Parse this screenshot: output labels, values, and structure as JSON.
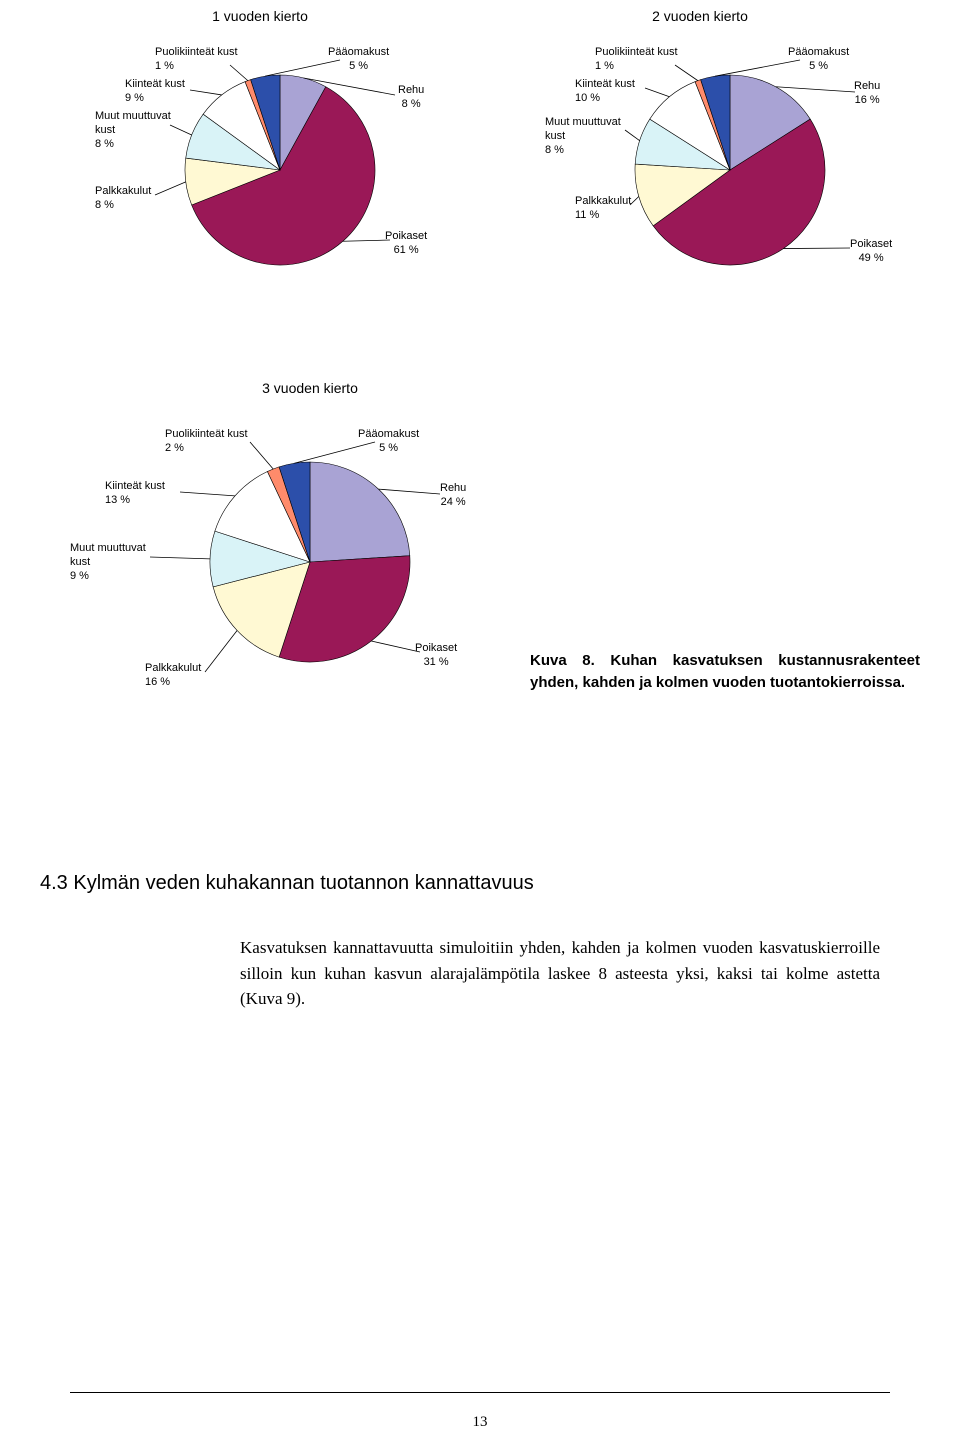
{
  "colors": {
    "rehu": "#a9a3d4",
    "poikaset": "#9a1857",
    "palkkakulut": "#fff9d3",
    "muut": "#d9f3f7",
    "kiinteat": "#ffffff",
    "puolikiinteat": "#ff8b6b",
    "paa": "#2c4faa",
    "outline": "#000000"
  },
  "chart1": {
    "title": "1 vuoden kierto",
    "type": "pie",
    "radius": 95,
    "slices": [
      {
        "label": "Rehu",
        "pct": 8
      },
      {
        "label": "Poikaset",
        "pct": 61
      },
      {
        "label": "Palkkakulut",
        "pct": 8
      },
      {
        "label": "Muut muuttuvat kust",
        "pct": 8
      },
      {
        "label": "Kiinteät kust",
        "pct": 9
      },
      {
        "label": "Puolikiinteät kust",
        "pct": 1
      },
      {
        "label": "Pääomakust",
        "pct": 5
      }
    ],
    "labels": {
      "puolikiinteat": "Puolikiinteät kust\n1 %",
      "kiinteat": "Kiinteät kust\n9 %",
      "muut": "Muut muuttuvat\nkust\n8 %",
      "palkkakulut": "Palkkakulut\n8 %",
      "paa": "Pääomakust\n5 %",
      "rehu": "Rehu\n8 %",
      "poikaset": "Poikaset\n61 %"
    }
  },
  "chart2": {
    "title": "2 vuoden kierto",
    "type": "pie",
    "radius": 95,
    "slices": [
      {
        "label": "Rehu",
        "pct": 16
      },
      {
        "label": "Poikaset",
        "pct": 49
      },
      {
        "label": "Palkkakulut",
        "pct": 11
      },
      {
        "label": "Muut muuttuvat kust",
        "pct": 8
      },
      {
        "label": "Kiinteät kust",
        "pct": 10
      },
      {
        "label": "Puolikiinteät kust",
        "pct": 1
      },
      {
        "label": "Pääomakust",
        "pct": 5
      }
    ],
    "labels": {
      "puolikiinteat": "Puolikiinteät kust\n1 %",
      "kiinteat": "Kiinteät kust\n10 %",
      "muut": "Muut muuttuvat\nkust\n8 %",
      "palkkakulut": "Palkkakulut\n11 %",
      "paa": "Pääomakust\n5 %",
      "rehu": "Rehu\n16 %",
      "poikaset": "Poikaset\n49 %"
    }
  },
  "chart3": {
    "title": "3 vuoden kierto",
    "type": "pie",
    "radius": 100,
    "slices": [
      {
        "label": "Rehu",
        "pct": 24
      },
      {
        "label": "Poikaset",
        "pct": 31
      },
      {
        "label": "Palkkakulut",
        "pct": 16
      },
      {
        "label": "Muut muuttuvat kust",
        "pct": 9
      },
      {
        "label": "Kiinteät kust",
        "pct": 13
      },
      {
        "label": "Puolikiinteät kust",
        "pct": 2
      },
      {
        "label": "Pääomakust",
        "pct": 5
      }
    ],
    "labels": {
      "puolikiinteat": "Puolikiinteät kust\n2 %",
      "kiinteat": "Kiinteät kust\n13 %",
      "muut": "Muut muuttuvat\nkust\n9 %",
      "palkkakulut": "Palkkakulut\n16 %",
      "paa": "Pääomakust\n5 %",
      "rehu": "Rehu\n24 %",
      "poikaset": "Poikaset\n31 %"
    }
  },
  "caption": "Kuva 8. Kuhan kasvatuksen kustannusrakenteet yhden, kahden ja kolmen vuoden tuotantokierroissa.",
  "section_heading": "4.3 Kylmän veden kuhakannan tuotannon kannattavuus",
  "body_text": "Kasvatuksen kannattavuutta simuloitiin yhden, kahden ja kolmen vuoden kasvatuskierroille silloin kun kuhan kasvun alarajalämpötila laskee 8 asteesta yksi, kaksi tai kolme astetta (Kuva 9).",
  "page_number": "13"
}
